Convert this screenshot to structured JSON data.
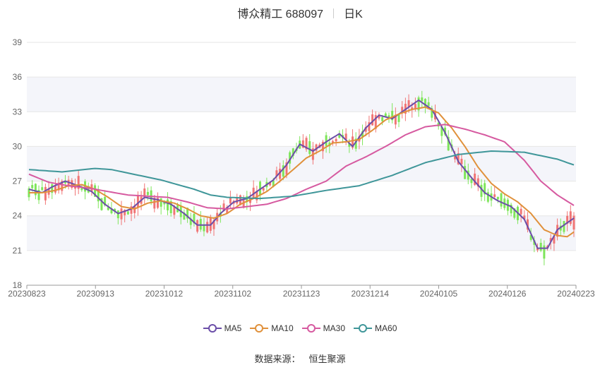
{
  "title": {
    "stock": "博众精工 688097",
    "period": "日K"
  },
  "source": {
    "label": "数据来源：",
    "provider": "恒生聚源"
  },
  "colors": {
    "up": "#f07575",
    "down": "#7ee55a",
    "ma5": "#6b4ea8",
    "ma10": "#e0913b",
    "ma30": "#d65aa0",
    "ma60": "#3f9699",
    "band": "#f4f5fa",
    "grid": "#e6e6e6"
  },
  "chart_data": {
    "type": "candlestick",
    "ylim": [
      18,
      39
    ],
    "yticks": [
      "18",
      "21",
      "24",
      "27",
      "30",
      "33",
      "36",
      "39"
    ],
    "xticks": [
      "20230823",
      "20230913",
      "20231012",
      "20231102",
      "20231123",
      "20231214",
      "20240105",
      "20240126",
      "20240223"
    ],
    "legend": [
      "MA5",
      "MA10",
      "MA30",
      "MA60"
    ],
    "legend_position": "bottom",
    "ma_series": [
      {
        "name": "MA5",
        "points": [
          [
            0,
            26.3
          ],
          [
            4,
            26.0
          ],
          [
            7,
            26.5
          ],
          [
            11,
            27.0
          ],
          [
            15,
            26.6
          ],
          [
            19,
            26.1
          ],
          [
            23,
            25.0
          ],
          [
            27,
            24.2
          ],
          [
            31,
            24.6
          ],
          [
            35,
            25.6
          ],
          [
            39,
            25.4
          ],
          [
            43,
            25.0
          ],
          [
            47,
            24.2
          ],
          [
            51,
            23.2
          ],
          [
            55,
            23.2
          ],
          [
            58,
            24.2
          ],
          [
            62,
            25.2
          ],
          [
            66,
            25.5
          ],
          [
            70,
            26.3
          ],
          [
            74,
            27.1
          ],
          [
            78,
            28.4
          ],
          [
            82,
            30.2
          ],
          [
            86,
            29.6
          ],
          [
            90,
            30.4
          ],
          [
            94,
            31.1
          ],
          [
            98,
            30.0
          ],
          [
            102,
            31.6
          ],
          [
            106,
            32.7
          ],
          [
            110,
            32.4
          ],
          [
            114,
            33.2
          ],
          [
            118,
            34.0
          ],
          [
            122,
            33.2
          ],
          [
            126,
            31.2
          ],
          [
            130,
            28.7
          ],
          [
            134,
            27.3
          ],
          [
            138,
            26.0
          ],
          [
            142,
            25.3
          ],
          [
            146,
            24.8
          ],
          [
            150,
            23.7
          ],
          [
            154,
            21.2
          ],
          [
            157,
            21.2
          ],
          [
            160,
            22.8
          ],
          [
            163,
            23.4
          ],
          [
            165,
            23.8
          ]
        ]
      },
      {
        "name": "MA10",
        "points": [
          [
            0,
            26.0
          ],
          [
            4,
            26.0
          ],
          [
            8,
            26.2
          ],
          [
            12,
            26.6
          ],
          [
            16,
            26.7
          ],
          [
            20,
            26.3
          ],
          [
            24,
            25.6
          ],
          [
            28,
            24.8
          ],
          [
            32,
            24.6
          ],
          [
            36,
            25.1
          ],
          [
            40,
            25.3
          ],
          [
            44,
            25.1
          ],
          [
            48,
            24.6
          ],
          [
            52,
            24.0
          ],
          [
            56,
            23.8
          ],
          [
            60,
            24.2
          ],
          [
            64,
            25.0
          ],
          [
            68,
            25.5
          ],
          [
            72,
            26.1
          ],
          [
            76,
            27.0
          ],
          [
            80,
            28.0
          ],
          [
            84,
            29.0
          ],
          [
            88,
            29.6
          ],
          [
            92,
            30.3
          ],
          [
            96,
            30.4
          ],
          [
            100,
            30.6
          ],
          [
            104,
            31.4
          ],
          [
            108,
            32.3
          ],
          [
            112,
            32.8
          ],
          [
            116,
            33.2
          ],
          [
            120,
            33.4
          ],
          [
            124,
            32.9
          ],
          [
            128,
            31.6
          ],
          [
            132,
            30.0
          ],
          [
            136,
            28.2
          ],
          [
            140,
            26.8
          ],
          [
            144,
            25.9
          ],
          [
            148,
            25.2
          ],
          [
            152,
            24.2
          ],
          [
            156,
            22.8
          ],
          [
            160,
            22.3
          ],
          [
            163,
            22.2
          ],
          [
            165,
            22.6
          ]
        ]
      },
      {
        "name": "MA30",
        "points": [
          [
            0,
            27.6
          ],
          [
            6,
            26.9
          ],
          [
            12,
            26.6
          ],
          [
            18,
            26.4
          ],
          [
            24,
            26.1
          ],
          [
            30,
            25.8
          ],
          [
            36,
            25.7
          ],
          [
            42,
            25.6
          ],
          [
            48,
            25.2
          ],
          [
            54,
            24.7
          ],
          [
            60,
            24.6
          ],
          [
            66,
            24.8
          ],
          [
            72,
            25.0
          ],
          [
            78,
            25.5
          ],
          [
            84,
            26.3
          ],
          [
            90,
            27.0
          ],
          [
            96,
            28.3
          ],
          [
            102,
            29.1
          ],
          [
            108,
            30.0
          ],
          [
            114,
            31.0
          ],
          [
            120,
            31.7
          ],
          [
            126,
            31.9
          ],
          [
            132,
            31.5
          ],
          [
            138,
            31.0
          ],
          [
            144,
            30.4
          ],
          [
            150,
            28.8
          ],
          [
            155,
            27.0
          ],
          [
            160,
            25.8
          ],
          [
            165,
            24.9
          ]
        ]
      },
      {
        "name": "MA60",
        "points": [
          [
            0,
            28.0
          ],
          [
            10,
            27.8
          ],
          [
            20,
            28.1
          ],
          [
            25,
            28.0
          ],
          [
            30,
            27.7
          ],
          [
            40,
            27.1
          ],
          [
            50,
            26.3
          ],
          [
            55,
            25.8
          ],
          [
            60,
            25.6
          ],
          [
            70,
            25.5
          ],
          [
            80,
            25.7
          ],
          [
            90,
            26.2
          ],
          [
            100,
            26.6
          ],
          [
            110,
            27.5
          ],
          [
            120,
            28.6
          ],
          [
            130,
            29.3
          ],
          [
            140,
            29.6
          ],
          [
            150,
            29.5
          ],
          [
            160,
            28.9
          ],
          [
            165,
            28.4
          ]
        ]
      }
    ]
  }
}
